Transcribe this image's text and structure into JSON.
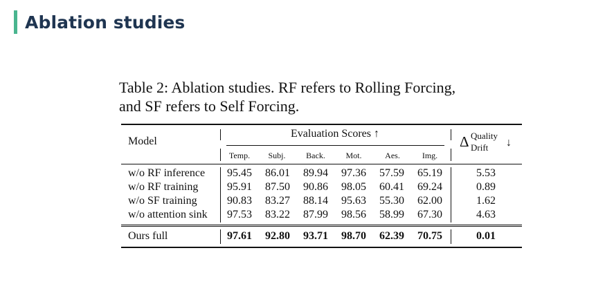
{
  "heading": "Ablation studies",
  "caption": {
    "line1": "Table 2:   Ablation studies.  RF refers to Rolling Forcing,",
    "line2": "and SF refers to Self Forcing."
  },
  "table": {
    "model_header": "Model",
    "group_header": "Evaluation Scores ↑",
    "drift_header": {
      "symbol": "Δ",
      "top": "Quality",
      "bottom": "Drift",
      "arrow": "↓"
    },
    "columns": [
      "Temp.",
      "Subj.",
      "Back.",
      "Mot.",
      "Aes.",
      "Img."
    ],
    "rows": [
      {
        "model": "w/o RF inference",
        "scores": [
          "95.45",
          "86.01",
          "89.94",
          "97.36",
          "57.59",
          "65.19"
        ],
        "drift": "5.53"
      },
      {
        "model": "w/o RF training",
        "scores": [
          "95.91",
          "87.50",
          "90.86",
          "98.05",
          "60.41",
          "69.24"
        ],
        "drift": "0.89"
      },
      {
        "model": "w/o SF training",
        "scores": [
          "90.83",
          "83.27",
          "88.14",
          "95.63",
          "55.30",
          "62.00"
        ],
        "drift": "1.62"
      },
      {
        "model": "w/o attention sink",
        "scores": [
          "97.53",
          "83.22",
          "87.99",
          "98.56",
          "58.99",
          "67.30"
        ],
        "drift": "4.63"
      }
    ],
    "final_row": {
      "model": "Ours full",
      "scores": [
        "97.61",
        "92.80",
        "93.71",
        "98.70",
        "62.39",
        "70.75"
      ],
      "drift": "0.01"
    }
  }
}
